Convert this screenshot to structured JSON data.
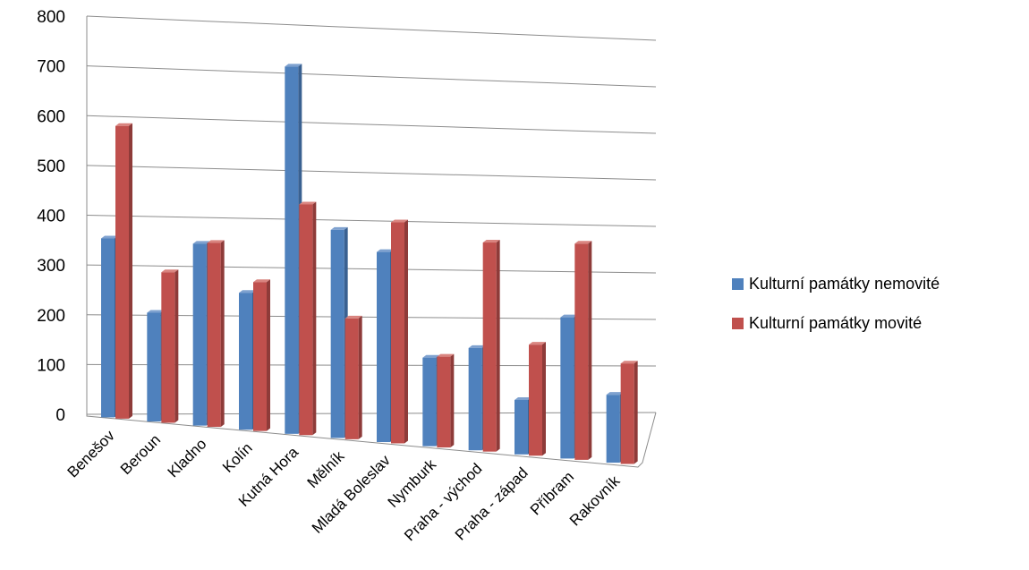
{
  "chart_data": {
    "type": "bar",
    "style": "3d-clustered-column",
    "categories": [
      "Benešov",
      "Beroun",
      "Kladno",
      "Kolín",
      "Kutná Hora",
      "Mělník",
      "Mladá Boleslav",
      "Nymburk",
      "Praha - východ",
      "Praha - západ",
      "Příbram",
      "Rakovník"
    ],
    "series": [
      {
        "name": "Kulturní památky nemovité",
        "color": "#4F81BD",
        "values": [
          360,
          220,
          370,
          280,
          755,
          430,
          395,
          185,
          215,
          115,
          300,
          145
        ]
      },
      {
        "name": "Kulturní památky movité",
        "color": "#C0504D",
        "values": [
          590,
          305,
          375,
          305,
          475,
          250,
          460,
          190,
          440,
          235,
          460,
          215
        ]
      }
    ],
    "ylim": [
      0,
      800
    ],
    "yticks": [
      "800",
      "700",
      "600",
      "500",
      "400",
      "300",
      "200",
      "100",
      "0"
    ],
    "grid": true,
    "legend_position": "right"
  }
}
